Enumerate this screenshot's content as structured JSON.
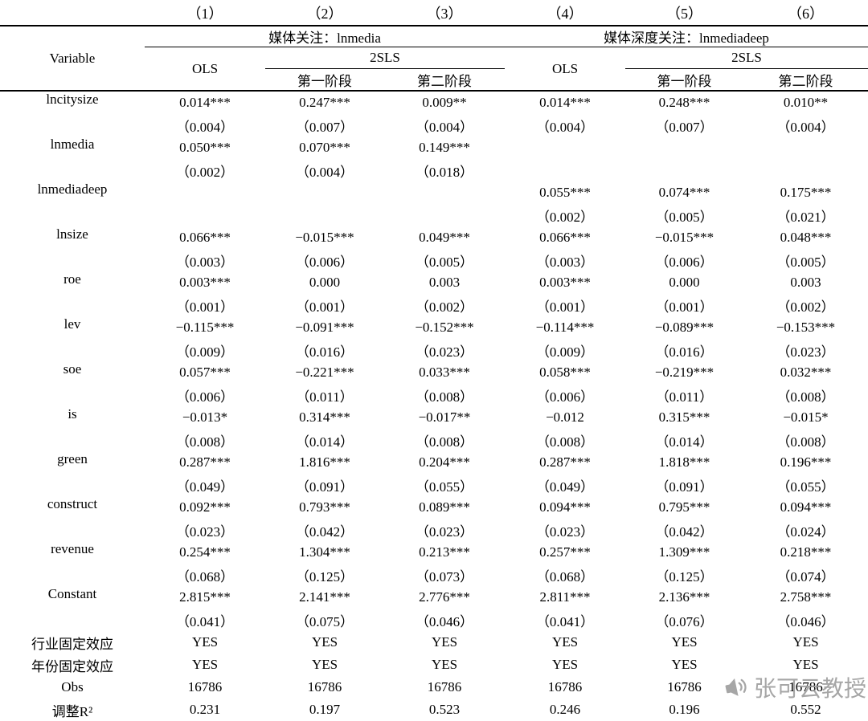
{
  "table": {
    "col_numbers": [
      "（1）",
      "（2）",
      "（3）",
      "（4）",
      "（5）",
      "（6）"
    ],
    "variable_header": "Variable",
    "group_headers": [
      "媒体关注：lnmedia",
      "媒体深度关注：lnmediadeep"
    ],
    "ols_label": "OLS",
    "tsls_label": "2SLS",
    "stage_labels": [
      "第一阶段",
      "第二阶段"
    ],
    "rows": [
      {
        "label": "lncitysize",
        "coef": [
          "0.014***",
          "0.247***",
          "0.009**",
          "0.014***",
          "0.248***",
          "0.010**"
        ],
        "se": [
          "（0.004）",
          "（0.007）",
          "（0.004）",
          "（0.004）",
          "（0.007）",
          "（0.004）"
        ]
      },
      {
        "label": "lnmedia",
        "coef": [
          "0.050***",
          "0.070***",
          "0.149***",
          "",
          "",
          ""
        ],
        "se": [
          "（0.002）",
          "（0.004）",
          "（0.018）",
          "",
          "",
          ""
        ]
      },
      {
        "label": "lnmediadeep",
        "coef": [
          "",
          "",
          "",
          "0.055***",
          "0.074***",
          "0.175***"
        ],
        "se": [
          "",
          "",
          "",
          "（0.002）",
          "（0.005）",
          "（0.021）"
        ]
      },
      {
        "label": "lnsize",
        "coef": [
          "0.066***",
          "−0.015***",
          "0.049***",
          "0.066***",
          "−0.015***",
          "0.048***"
        ],
        "se": [
          "（0.003）",
          "（0.006）",
          "（0.005）",
          "（0.003）",
          "（0.006）",
          "（0.005）"
        ]
      },
      {
        "label": "roe",
        "coef": [
          "0.003***",
          "0.000",
          "0.003",
          "0.003***",
          "0.000",
          "0.003"
        ],
        "se": [
          "（0.001）",
          "（0.001）",
          "（0.002）",
          "（0.001）",
          "（0.001）",
          "（0.002）"
        ]
      },
      {
        "label": "lev",
        "coef": [
          "−0.115***",
          "−0.091***",
          "−0.152***",
          "−0.114***",
          "−0.089***",
          "−0.153***"
        ],
        "se": [
          "（0.009）",
          "（0.016）",
          "（0.023）",
          "（0.009）",
          "（0.016）",
          "（0.023）"
        ]
      },
      {
        "label": "soe",
        "coef": [
          "0.057***",
          "−0.221***",
          "0.033***",
          "0.058***",
          "−0.219***",
          "0.032***"
        ],
        "se": [
          "（0.006）",
          "（0.011）",
          "（0.008）",
          "（0.006）",
          "（0.011）",
          "（0.008）"
        ]
      },
      {
        "label": "is",
        "coef": [
          "−0.013*",
          "0.314***",
          "−0.017**",
          "−0.012",
          "0.315***",
          "−0.015*"
        ],
        "se": [
          "（0.008）",
          "（0.014）",
          "（0.008）",
          "（0.008）",
          "（0.014）",
          "（0.008）"
        ]
      },
      {
        "label": "green",
        "coef": [
          "0.287***",
          "1.816***",
          "0.204***",
          "0.287***",
          "1.818***",
          "0.196***"
        ],
        "se": [
          "（0.049）",
          "（0.091）",
          "（0.055）",
          "（0.049）",
          "（0.091）",
          "（0.055）"
        ]
      },
      {
        "label": "construct",
        "coef": [
          "0.092***",
          "0.793***",
          "0.089***",
          "0.094***",
          "0.795***",
          "0.094***"
        ],
        "se": [
          "（0.023）",
          "（0.042）",
          "（0.023）",
          "（0.023）",
          "（0.042）",
          "（0.024）"
        ]
      },
      {
        "label": "revenue",
        "coef": [
          "0.254***",
          "1.304***",
          "0.213***",
          "0.257***",
          "1.309***",
          "0.218***"
        ],
        "se": [
          "（0.068）",
          "（0.125）",
          "（0.073）",
          "（0.068）",
          "（0.125）",
          "（0.074）"
        ]
      },
      {
        "label": "Constant",
        "coef": [
          "2.815***",
          "2.141***",
          "2.776***",
          "2.811***",
          "2.136***",
          "2.758***"
        ],
        "se": [
          "（0.041）",
          "（0.075）",
          "（0.046）",
          "（0.041）",
          "（0.076）",
          "（0.046）"
        ]
      }
    ],
    "bottom_rows": [
      {
        "label": "行业固定效应",
        "values": [
          "YES",
          "YES",
          "YES",
          "YES",
          "YES",
          "YES"
        ]
      },
      {
        "label": "年份固定效应",
        "values": [
          "YES",
          "YES",
          "YES",
          "YES",
          "YES",
          "YES"
        ]
      },
      {
        "label": "Obs",
        "values": [
          "16786",
          "16786",
          "16786",
          "16786",
          "16786",
          "16786"
        ]
      },
      {
        "label": "调整R²",
        "values": [
          "0.231",
          "0.197",
          "0.523",
          "0.246",
          "0.196",
          "0.552"
        ]
      }
    ]
  },
  "watermark": {
    "text": "张可云教授",
    "color": "#9a9a9a"
  }
}
